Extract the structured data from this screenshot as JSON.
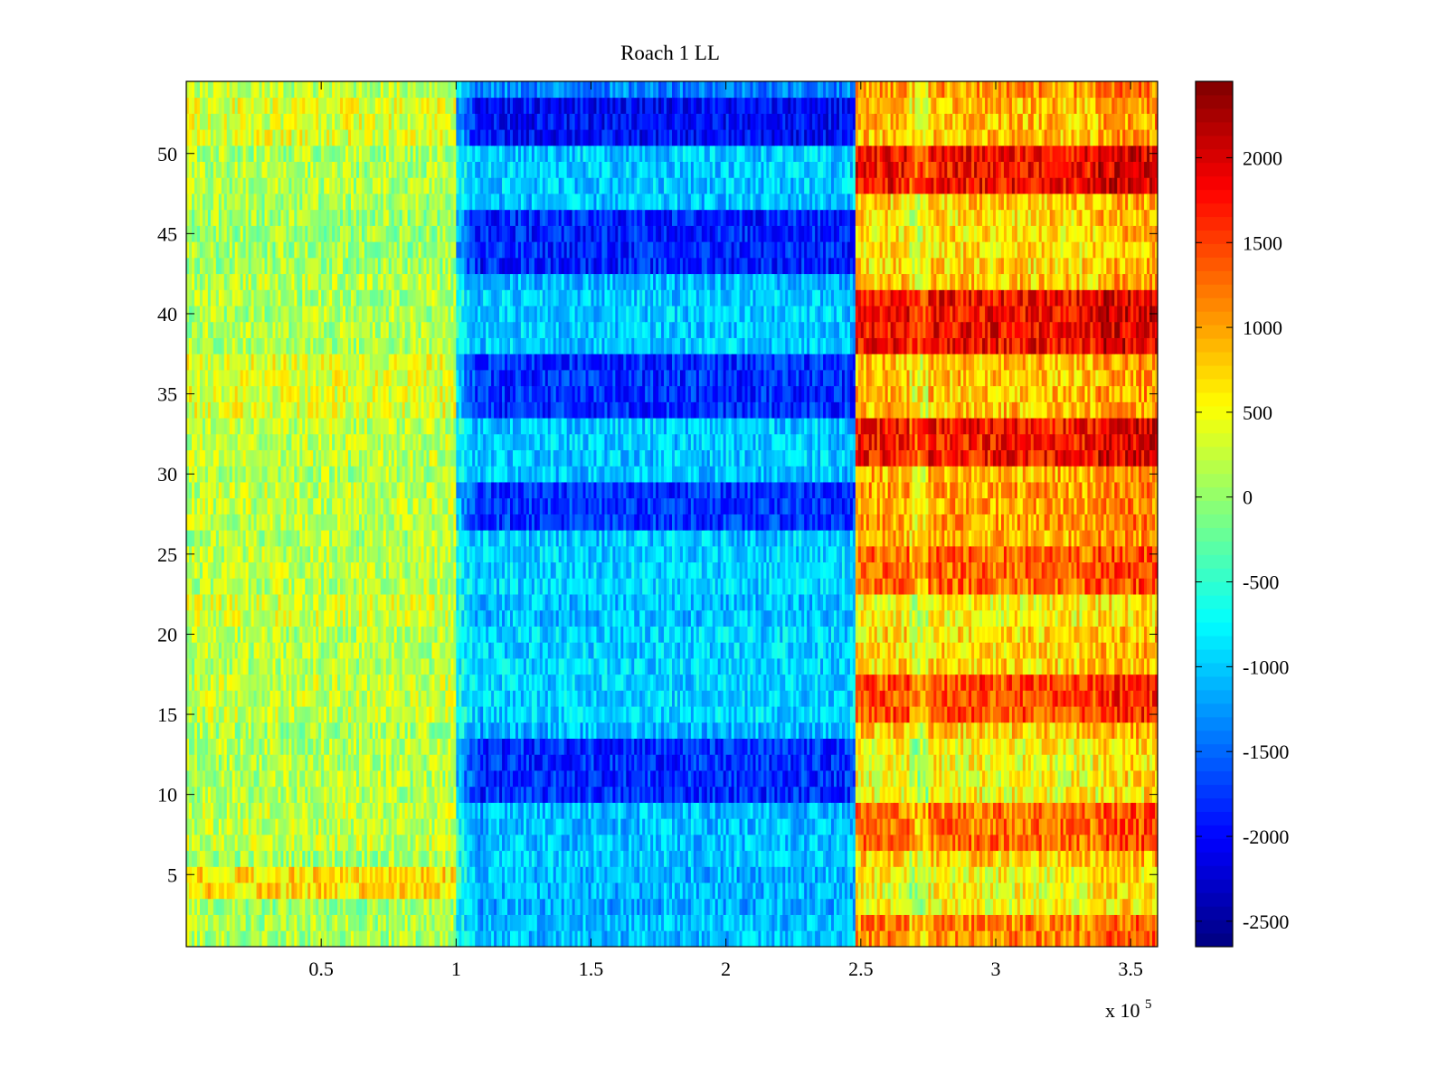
{
  "chart_data": {
    "type": "heatmap",
    "title": "Roach 1 LL",
    "colormap": "jet",
    "xlim": [
      0,
      360000
    ],
    "ylim": [
      0.5,
      54.5
    ],
    "clim": [
      -2650,
      2450
    ],
    "x_exponent_label": {
      "base": "x 10",
      "exp": "5"
    },
    "x_ticks": [
      {
        "value": 50000,
        "label": "0.5"
      },
      {
        "value": 100000,
        "label": "1"
      },
      {
        "value": 150000,
        "label": "1.5"
      },
      {
        "value": 200000,
        "label": "2"
      },
      {
        "value": 250000,
        "label": "2.5"
      },
      {
        "value": 300000,
        "label": "3"
      },
      {
        "value": 350000,
        "label": "3.5"
      }
    ],
    "y_ticks": [
      {
        "value": 5,
        "label": "5"
      },
      {
        "value": 10,
        "label": "10"
      },
      {
        "value": 15,
        "label": "15"
      },
      {
        "value": 20,
        "label": "20"
      },
      {
        "value": 25,
        "label": "25"
      },
      {
        "value": 30,
        "label": "30"
      },
      {
        "value": 35,
        "label": "35"
      },
      {
        "value": 40,
        "label": "40"
      },
      {
        "value": 45,
        "label": "45"
      },
      {
        "value": 50,
        "label": "50"
      }
    ],
    "colorbar_ticks": [
      {
        "value": 2000,
        "label": "2000"
      },
      {
        "value": 1500,
        "label": "1500"
      },
      {
        "value": 1000,
        "label": "1000"
      },
      {
        "value": 500,
        "label": "500"
      },
      {
        "value": 0,
        "label": "0"
      },
      {
        "value": -500,
        "label": "-500"
      },
      {
        "value": -1000,
        "label": "-1000"
      },
      {
        "value": -1500,
        "label": "-1500"
      },
      {
        "value": -2000,
        "label": "-2000"
      },
      {
        "value": -2500,
        "label": "-2500"
      }
    ],
    "x_segments": [
      {
        "from": 0,
        "to": 100000,
        "phase": "baseline"
      },
      {
        "from": 100000,
        "to": 110000,
        "phase": "transition"
      },
      {
        "from": 110000,
        "to": 248000,
        "phase": "negative"
      },
      {
        "from": 248000,
        "to": 360000,
        "phase": "positive"
      }
    ],
    "row_levels": {
      "rows": [
        "1-2",
        "3",
        "4-5",
        "6",
        "7-9",
        "10-13",
        "14",
        "15-17",
        "18-20",
        "21-22",
        "23-25",
        "26",
        "27-29",
        "30",
        "31-33",
        "34-37",
        "38-41",
        "42",
        "43-46",
        "47",
        "48-50",
        "51-53",
        "54"
      ],
      "baseline_mean": [
        100,
        50,
        700,
        80,
        220,
        150,
        100,
        250,
        150,
        320,
        200,
        150,
        220,
        150,
        200,
        380,
        120,
        180,
        60,
        100,
        120,
        380,
        200
      ],
      "negative_mean": [
        -1050,
        -1150,
        -1100,
        -1000,
        -1050,
        -1800,
        -1100,
        -950,
        -950,
        -1050,
        -950,
        -1000,
        -1750,
        -1050,
        -1000,
        -1800,
        -1000,
        -1100,
        -1850,
        -1050,
        -1000,
        -2000,
        -1350
      ],
      "positive_mean": [
        1150,
        500,
        500,
        750,
        1250,
        500,
        750,
        1450,
        700,
        550,
        1300,
        900,
        1000,
        900,
        1750,
        850,
        1800,
        800,
        700,
        750,
        1800,
        850,
        1050
      ]
    }
  }
}
